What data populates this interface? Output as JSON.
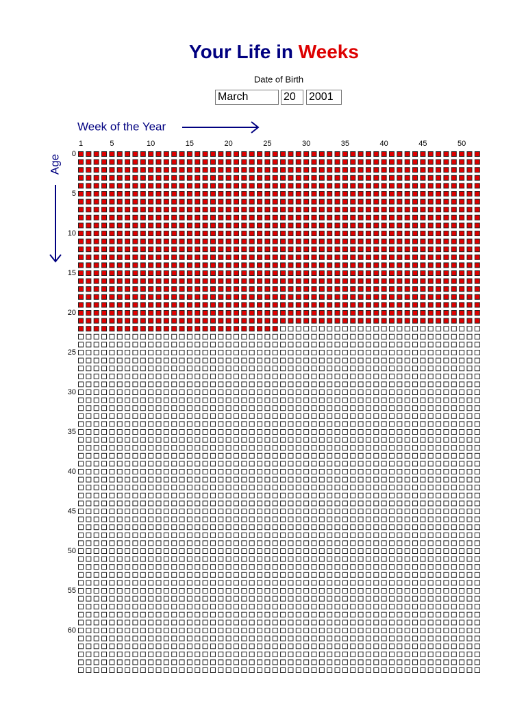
{
  "header": {
    "title_start": "Your Life in",
    "title_end": "Weeks"
  },
  "dob": {
    "label": "Date of Birth",
    "month": "March",
    "day": "20",
    "year": "2001"
  },
  "grid": {
    "x_label": "Week of the Year",
    "y_label": "Age",
    "week_ticks": [
      1,
      5,
      10,
      15,
      20,
      25,
      30,
      35,
      40,
      45,
      50
    ],
    "age_ticks": [
      0,
      5,
      10,
      15,
      20,
      25,
      30,
      35,
      40,
      45,
      50,
      55,
      60
    ],
    "weeks_per_year": 52,
    "years": 66,
    "weeks_lived": 1170
  }
}
